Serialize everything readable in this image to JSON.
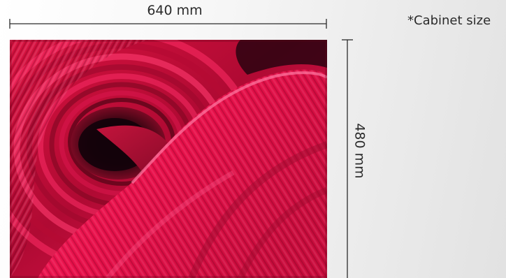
{
  "dimensions": {
    "width_label": "640 mm",
    "height_label": "480 mm",
    "note": "*Cabinet size"
  },
  "colors": {
    "swirl_primary": "#e0164c",
    "swirl_highlight": "#ff4f86",
    "swirl_shadow": "#3a0613",
    "dimension_line": "#2b2b2b"
  },
  "image": {
    "subject": "abstract-red-swirl-panel"
  }
}
